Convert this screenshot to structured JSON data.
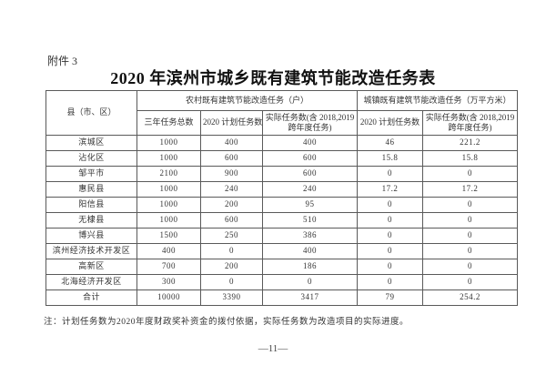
{
  "page": {
    "attachment_label": "附件 3",
    "title": "2020 年滨州市城乡既有建筑节能改造任务表",
    "note": "注：计划任务数为2020年度财政奖补资金的拨付依据，实际任务数为改造项目的实际进度。",
    "page_number": "—11—"
  },
  "table": {
    "headers": {
      "region": "县（市、区）",
      "rural_group": "农村既有建筑节能改造任务（户）",
      "urban_group": "城镇既有建筑节能改造任务（万平方米）",
      "three_year_total": "三年任务总数",
      "rural_plan_2020": "2020 计划任务数",
      "rural_actual_line1": "实际任务数(含 2018,2019",
      "rural_actual_line2": "跨年度任务)",
      "urban_plan_2020": "2020 计划任务数",
      "urban_actual_line1": "实际任务数(含 2018,2019",
      "urban_actual_line2": "跨年度任务)"
    },
    "rows": [
      {
        "region": "滨城区",
        "three_year": "1000",
        "plan_rural": "400",
        "actual_rural": "400",
        "plan_urban": "46",
        "actual_urban": "221.2"
      },
      {
        "region": "沾化区",
        "three_year": "1000",
        "plan_rural": "600",
        "actual_rural": "600",
        "plan_urban": "15.8",
        "actual_urban": "15.8"
      },
      {
        "region": "邹平市",
        "three_year": "2100",
        "plan_rural": "900",
        "actual_rural": "600",
        "plan_urban": "0",
        "actual_urban": "0"
      },
      {
        "region": "惠民县",
        "three_year": "1000",
        "plan_rural": "240",
        "actual_rural": "240",
        "plan_urban": "17.2",
        "actual_urban": "17.2"
      },
      {
        "region": "阳信县",
        "three_year": "1000",
        "plan_rural": "200",
        "actual_rural": "95",
        "plan_urban": "0",
        "actual_urban": "0"
      },
      {
        "region": "无棣县",
        "three_year": "1000",
        "plan_rural": "600",
        "actual_rural": "510",
        "plan_urban": "0",
        "actual_urban": "0"
      },
      {
        "region": "博兴县",
        "three_year": "1500",
        "plan_rural": "250",
        "actual_rural": "386",
        "plan_urban": "0",
        "actual_urban": "0"
      },
      {
        "region": "滨州经济技术开发区",
        "three_year": "400",
        "plan_rural": "0",
        "actual_rural": "400",
        "plan_urban": "0",
        "actual_urban": "0"
      },
      {
        "region": "高新区",
        "three_year": "700",
        "plan_rural": "200",
        "actual_rural": "186",
        "plan_urban": "0",
        "actual_urban": "0"
      },
      {
        "region": "北海经济开发区",
        "three_year": "300",
        "plan_rural": "0",
        "actual_rural": "0",
        "plan_urban": "0",
        "actual_urban": "0"
      },
      {
        "region": "合计",
        "three_year": "10000",
        "plan_rural": "3390",
        "actual_rural": "3417",
        "plan_urban": "79",
        "actual_urban": "254.2"
      }
    ]
  }
}
